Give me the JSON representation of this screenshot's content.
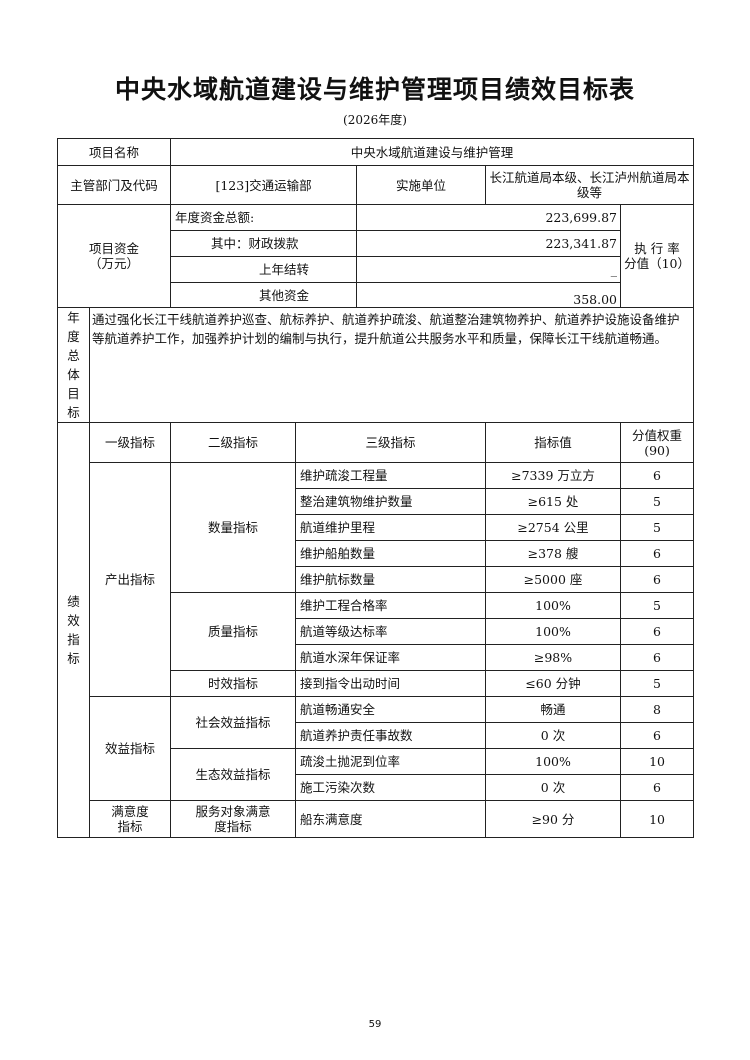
{
  "title": "中央水域航道建设与维护管理项目绩效目标表",
  "subtitle": "(2026年度)",
  "project": {
    "name_label": "项目名称",
    "name_value": "中央水域航道建设与维护管理",
    "dept_label": "主管部门及代码",
    "dept_value": "[123]交通运输部",
    "impl_label": "实施单位",
    "impl_value": "长江航道局本级、长江泸州航道局本级等"
  },
  "funds": {
    "label_line1": "项目资金",
    "label_line2": "（万元）",
    "rows": [
      {
        "label": "年度资金总额:",
        "value": "223,699.87"
      },
      {
        "label": "其中：财政拨款",
        "value": "223,341.87"
      },
      {
        "label": "上年结转",
        "value": "_"
      },
      {
        "label": "其他资金",
        "value": "358.00"
      }
    ],
    "rate_label_line1": "执 行 率",
    "rate_label_line2": "分值（10）"
  },
  "goal": {
    "label": "年度总体目标",
    "text": "通过强化长江干线航道养护巡查、航标养护、航道养护疏浚、航道整治建筑物养护、航道养护设施设备维护等航道养护工作，加强养护计划的编制与执行，提升航道公共服务水平和质量，保障长江干线航道畅通。"
  },
  "indicators": {
    "section_label": "绩效指标",
    "headers": {
      "level1": "一级指标",
      "level2": "二级指标",
      "level3": "三级指标",
      "value": "指标值",
      "weight_line1": "分值权重",
      "weight_line2": "(90)"
    },
    "groups": [
      {
        "level1": "产出指标",
        "subgroups": [
          {
            "level2": "数量指标",
            "items": [
              {
                "name": "维护疏浚工程量",
                "value": "≥7339 万立方",
                "weight": "6"
              },
              {
                "name": "整治建筑物维护数量",
                "value": "≥615 处",
                "weight": "5"
              },
              {
                "name": "航道维护里程",
                "value": "≥2754 公里",
                "weight": "5"
              },
              {
                "name": "维护船舶数量",
                "value": "≥378 艘",
                "weight": "6"
              },
              {
                "name": "维护航标数量",
                "value": "≥5000 座",
                "weight": "6"
              }
            ]
          },
          {
            "level2": "质量指标",
            "items": [
              {
                "name": "维护工程合格率",
                "value": "100%",
                "weight": "5"
              },
              {
                "name": "航道等级达标率",
                "value": "100%",
                "weight": "6"
              },
              {
                "name": "航道水深年保证率",
                "value": "≥98%",
                "weight": "6"
              }
            ]
          },
          {
            "level2": "时效指标",
            "items": [
              {
                "name": "接到指令出动时间",
                "value": "≤60 分钟",
                "weight": "5"
              }
            ]
          }
        ]
      },
      {
        "level1": "效益指标",
        "subgroups": [
          {
            "level2": "社会效益指标",
            "items": [
              {
                "name": "航道畅通安全",
                "value": "畅通",
                "weight": "8"
              },
              {
                "name": "航道养护责任事故数",
                "value": "0 次",
                "weight": "6"
              }
            ]
          },
          {
            "level2": "生态效益指标",
            "items": [
              {
                "name": "疏浚土抛泥到位率",
                "value": "100%",
                "weight": "10"
              },
              {
                "name": "施工污染次数",
                "value": "0 次",
                "weight": "6"
              }
            ]
          }
        ]
      },
      {
        "level1": "满意度指标",
        "subgroups": [
          {
            "level2": "服务对象满意度指标",
            "items": [
              {
                "name": "船东满意度",
                "value": "≥90 分",
                "weight": "10"
              }
            ]
          }
        ]
      }
    ]
  },
  "page_number": "59"
}
